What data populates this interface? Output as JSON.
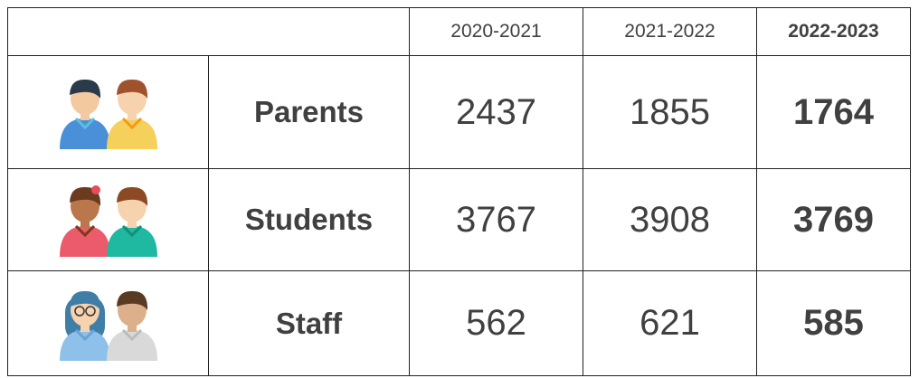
{
  "table": {
    "headers": [
      "2020-2021",
      "2021-2022",
      "2022-2023"
    ],
    "rows": [
      {
        "label": "Parents",
        "values": [
          2437,
          1855,
          1764
        ]
      },
      {
        "label": "Students",
        "values": [
          3767,
          3908,
          3769
        ]
      },
      {
        "label": "Staff",
        "values": [
          562,
          621,
          585
        ]
      }
    ]
  }
}
